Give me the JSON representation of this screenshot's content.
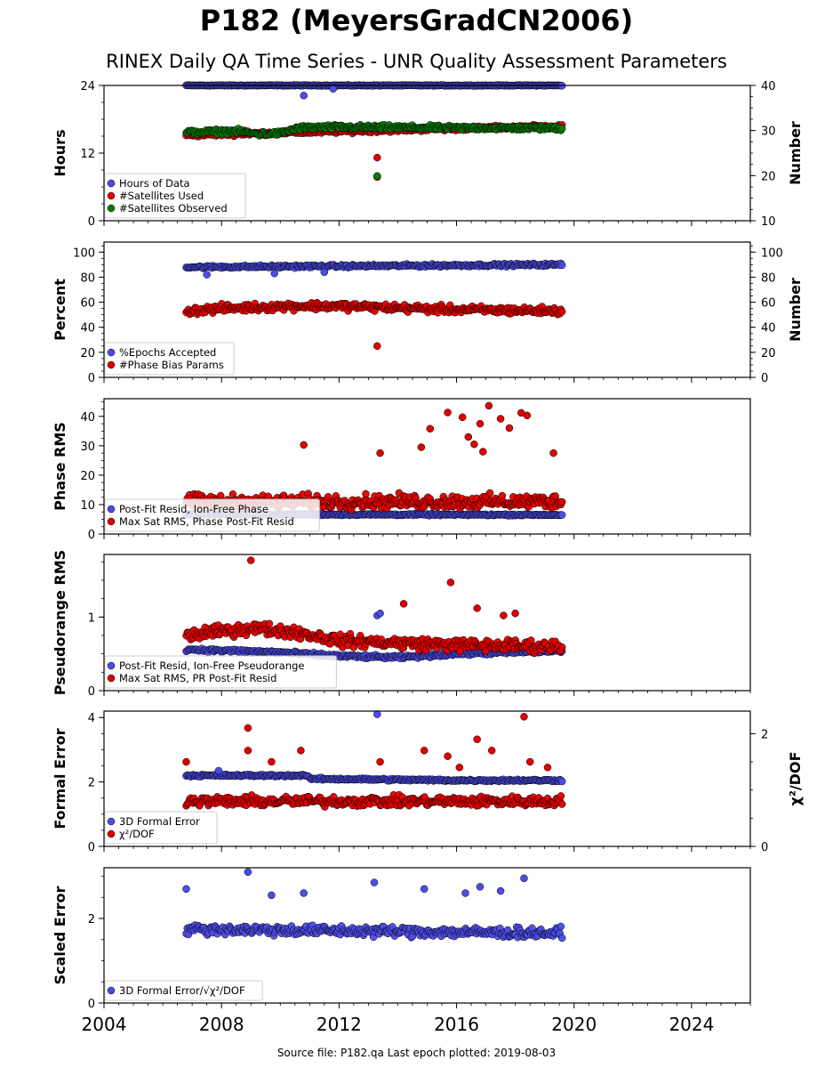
{
  "title": "P182 (MeyersGradCN2006)",
  "subtitle": "RINEX Daily QA Time Series - UNR Quality Assessment Parameters",
  "footer": "Source file: P182.qa Last epoch plotted: 2019-08-03",
  "colors": {
    "blue": "#4c4ce8",
    "red": "#e00000",
    "green": "#0a7a0a",
    "edge": "#000000"
  },
  "chart_data": {
    "type": "scatter",
    "x_axis": {
      "range": [
        2004.0,
        2026.0
      ],
      "ticks": [
        "2004",
        "2008",
        "2012",
        "2016",
        "2020",
        "2024"
      ],
      "tick_values": [
        2004,
        2008,
        2012,
        2016,
        2020,
        2024
      ]
    },
    "data_start": 2006.8,
    "data_end": 2019.59,
    "panels": [
      {
        "id": "hours",
        "ylabel": "Hours",
        "ylim": [
          0,
          24
        ],
        "yticks": [
          "0",
          "12",
          "24"
        ],
        "ytick_values": [
          0,
          12,
          24
        ],
        "right_axis": {
          "ylabel": "Number",
          "ylim": [
            10,
            40
          ],
          "yticks": [
            "10",
            "20",
            "30",
            "40"
          ],
          "ytick_values": [
            10,
            20,
            30,
            40
          ]
        },
        "legend": [
          "Hours of Data",
          "#Satellites Used",
          "#Satellites Observed"
        ],
        "series": [
          {
            "name": "Hours of Data",
            "axis": "left",
            "color": "blue",
            "typical": [
              [
                2006.8,
                24
              ],
              [
                2019.59,
                24
              ]
            ],
            "spread": 0.1,
            "outliers": [
              [
                2010.8,
                22.2
              ],
              [
                2011.8,
                23.4
              ],
              [
                2013.3,
                7.9
              ]
            ]
          },
          {
            "name": "#Satellites Used",
            "axis": "right",
            "color": "red",
            "typical": [
              [
                2006.8,
                29
              ],
              [
                2019.59,
                31
              ]
            ],
            "spread": 0.6,
            "outliers": [
              [
                2008.8,
                30
              ],
              [
                2013.3,
                24
              ],
              [
                2013.3,
                19.7
              ]
            ]
          },
          {
            "name": "#Satellites Observed",
            "axis": "right",
            "color": "green",
            "typical": [
              [
                2006.8,
                29.6
              ],
              [
                2008.5,
                29.9
              ],
              [
                2009.2,
                29.2
              ],
              [
                2010.0,
                29.4
              ],
              [
                2010.6,
                30.6
              ],
              [
                2012.0,
                30.8
              ],
              [
                2016.0,
                30.6
              ],
              [
                2019.59,
                30.5
              ]
            ],
            "spread": 0.7,
            "outliers": [
              [
                2013.3,
                19.9
              ]
            ]
          }
        ]
      },
      {
        "id": "percent",
        "ylabel": "Percent",
        "ylim": [
          0,
          108
        ],
        "yticks": [
          "0",
          "20",
          "40",
          "60",
          "80",
          "100"
        ],
        "ytick_values": [
          0,
          20,
          40,
          60,
          80,
          100
        ],
        "right_axis": {
          "ylabel": "Number",
          "ylim": [
            0,
            108
          ],
          "yticks": [
            "0",
            "20",
            "40",
            "60",
            "80",
            "100"
          ],
          "ytick_values": [
            0,
            20,
            40,
            60,
            80,
            100
          ]
        },
        "legend": [
          "%Epochs Accepted",
          "#Phase Bias Params"
        ],
        "series": [
          {
            "name": "%Epochs Accepted",
            "axis": "left",
            "color": "blue",
            "typical": [
              [
                2006.8,
                88
              ],
              [
                2019.59,
                90
              ]
            ],
            "spread": 1.6,
            "outliers": [
              [
                2007.5,
                82
              ],
              [
                2009.8,
                83
              ],
              [
                2011.5,
                84
              ]
            ]
          },
          {
            "name": "#Phase Bias Params",
            "axis": "right",
            "color": "red",
            "typical": [
              [
                2006.8,
                53
              ],
              [
                2008.0,
                55
              ],
              [
                2010.5,
                57
              ],
              [
                2012.0,
                57
              ],
              [
                2016.0,
                54
              ],
              [
                2019.59,
                53
              ]
            ],
            "spread": 4.5,
            "outliers": [
              [
                2013.3,
                25
              ]
            ]
          }
        ]
      },
      {
        "id": "phase",
        "ylabel": "Phase RMS",
        "ylim": [
          0,
          46
        ],
        "yticks": [
          "0",
          "10",
          "20",
          "30",
          "40"
        ],
        "ytick_values": [
          0,
          10,
          20,
          30,
          40
        ],
        "legend": [
          "Post-Fit Resid, Ion-Free Phase",
          "Max Sat RMS, Phase Post-Fit Resid"
        ],
        "series": [
          {
            "name": "Post-Fit Resid, Ion-Free Phase",
            "axis": "left",
            "color": "blue",
            "typical": [
              [
                2006.8,
                6.7
              ],
              [
                2019.59,
                6.5
              ]
            ],
            "spread": 0.4,
            "outliers": []
          },
          {
            "name": "Max Sat RMS, Phase Post-Fit Resid",
            "axis": "left",
            "color": "red",
            "typical": [
              [
                2006.8,
                11
              ],
              [
                2019.59,
                11
              ]
            ],
            "spread": 3.5,
            "outliers": [
              [
                2010.8,
                30.3
              ],
              [
                2015.7,
                41.3
              ],
              [
                2016.2,
                39.7
              ],
              [
                2016.8,
                37.5
              ],
              [
                2017.1,
                43.6
              ],
              [
                2017.5,
                39.2
              ],
              [
                2017.8,
                36
              ],
              [
                2018.2,
                41.2
              ],
              [
                2018.4,
                40.3
              ],
              [
                2016.4,
                33
              ],
              [
                2015.1,
                35.8
              ],
              [
                2016.6,
                30.5
              ],
              [
                2016.9,
                28
              ],
              [
                2014.8,
                29.5
              ],
              [
                2019.3,
                27.5
              ],
              [
                2013.4,
                27.5
              ]
            ]
          }
        ]
      },
      {
        "id": "pseudorange",
        "ylabel": "Pseudorange RMS",
        "ylim": [
          0,
          1.85
        ],
        "yticks": [
          "0",
          "1"
        ],
        "ytick_values": [
          0,
          1
        ],
        "legend": [
          "Post-Fit Resid, Ion-Free Pseudorange",
          "Max Sat RMS, PR Post-Fit Resid"
        ],
        "series": [
          {
            "name": "Post-Fit Resid, Ion-Free Pseudorange",
            "axis": "left",
            "color": "blue",
            "typical": [
              [
                2006.8,
                0.56
              ],
              [
                2010.0,
                0.52
              ],
              [
                2012.0,
                0.47
              ],
              [
                2014.0,
                0.45
              ],
              [
                2016.0,
                0.5
              ],
              [
                2019.59,
                0.54
              ]
            ],
            "spread": 0.035,
            "outliers": [
              [
                2013.3,
                1.02
              ],
              [
                2013.4,
                1.05
              ]
            ]
          },
          {
            "name": "Max Sat RMS, PR Post-Fit Resid",
            "axis": "left",
            "color": "red",
            "typical": [
              [
                2006.8,
                0.75
              ],
              [
                2009.0,
                0.85
              ],
              [
                2010.5,
                0.8
              ],
              [
                2012.0,
                0.68
              ],
              [
                2014.0,
                0.65
              ],
              [
                2016.0,
                0.62
              ],
              [
                2019.59,
                0.6
              ]
            ],
            "spread": 0.12,
            "outliers": [
              [
                2009.0,
                1.77
              ],
              [
                2015.8,
                1.47
              ],
              [
                2016.7,
                1.12
              ],
              [
                2014.2,
                1.18
              ],
              [
                2018.0,
                1.05
              ],
              [
                2017.6,
                1.02
              ]
            ]
          }
        ]
      },
      {
        "id": "formal",
        "ylabel": "Formal Error",
        "ylim": [
          0,
          4.2
        ],
        "yticks": [
          "0",
          "2",
          "4"
        ],
        "ytick_values": [
          0,
          2,
          4
        ],
        "right_axis": {
          "ylabel": "χ²/DOF",
          "ylim": [
            0,
            2.4
          ],
          "yticks": [
            "0",
            "2"
          ],
          "ytick_values": [
            0,
            2
          ]
        },
        "legend": [
          "3D Formal Error",
          "χ²/DOF"
        ],
        "series": [
          {
            "name": "3D Formal Error",
            "axis": "left",
            "color": "blue",
            "typical": [
              [
                2006.8,
                2.2
              ],
              [
                2010.9,
                2.2
              ],
              [
                2011.0,
                2.1
              ],
              [
                2016.0,
                2.05
              ],
              [
                2019.59,
                2.05
              ]
            ],
            "spread": 0.05,
            "outliers": [
              [
                2013.3,
                4.1
              ],
              [
                2007.9,
                2.35
              ]
            ]
          },
          {
            "name": "χ²/DOF",
            "axis": "right",
            "color": "red",
            "typical": [
              [
                2006.8,
                0.8
              ],
              [
                2019.59,
                0.8
              ]
            ],
            "spread": 0.13,
            "outliers": [
              [
                2008.9,
                2.1
              ],
              [
                2008.9,
                1.7
              ],
              [
                2010.7,
                1.7
              ],
              [
                2013.4,
                1.5
              ],
              [
                2014.9,
                1.7
              ],
              [
                2015.7,
                1.6
              ],
              [
                2016.7,
                1.9
              ],
              [
                2017.2,
                1.7
              ],
              [
                2018.3,
                2.3
              ],
              [
                2018.5,
                1.5
              ],
              [
                2009.7,
                1.5
              ],
              [
                2019.1,
                1.4
              ],
              [
                2016.1,
                1.4
              ],
              [
                2006.8,
                1.5
              ]
            ]
          }
        ]
      },
      {
        "id": "scaled",
        "ylabel": "Scaled Error",
        "ylim": [
          0,
          3.2
        ],
        "yticks": [
          "0",
          "2"
        ],
        "ytick_values": [
          0,
          2
        ],
        "legend": [
          "3D Formal Error/√χ²/DOF"
        ],
        "series": [
          {
            "name": "3D Formal Error/√χ²/DOF",
            "axis": "left",
            "color": "blue",
            "typical": [
              [
                2006.8,
                1.75
              ],
              [
                2019.59,
                1.65
              ]
            ],
            "spread": 0.18,
            "outliers": [
              [
                2008.9,
                3.1
              ],
              [
                2013.2,
                2.85
              ],
              [
                2018.3,
                2.95
              ],
              [
                2006.8,
                2.7
              ],
              [
                2014.9,
                2.7
              ],
              [
                2016.8,
                2.75
              ],
              [
                2017.5,
                2.65
              ],
              [
                2010.8,
                2.6
              ],
              [
                2016.3,
                2.6
              ],
              [
                2009.7,
                2.55
              ]
            ]
          }
        ]
      }
    ]
  }
}
